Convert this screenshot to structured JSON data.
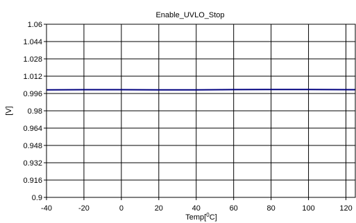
{
  "chart_data": {
    "type": "line",
    "title": "Enable_UVLO_Stop",
    "xlabel": "Temp[",
    "xlabel_sup": "0",
    "xlabel_end": "C]",
    "ylabel": "[V]",
    "xlim": [
      -40,
      125
    ],
    "ylim": [
      0.9,
      1.06
    ],
    "xticks": [
      -40,
      -20,
      0,
      20,
      40,
      60,
      80,
      100,
      120
    ],
    "yticks": [
      0.9,
      0.916,
      0.932,
      0.948,
      0.964,
      0.98,
      0.996,
      1.012,
      1.028,
      1.044,
      1.06
    ],
    "ytick_labels": [
      "0.9",
      "0.916",
      "0.932",
      "0.948",
      "0.964",
      "0.98",
      "0.996",
      "1.012",
      "1.028",
      "1.044",
      "1.06"
    ],
    "xtick_labels": [
      "-40",
      "-20",
      "0",
      "20",
      "40",
      "60",
      "80",
      "100",
      "120"
    ],
    "grid": true,
    "legend": "none",
    "series": [
      {
        "color": "#00007f",
        "x": [
          -40,
          -20,
          0,
          20,
          40,
          60,
          80,
          100,
          125
        ],
        "values": [
          0.9993,
          0.9995,
          0.9995,
          0.9994,
          0.9994,
          0.9996,
          0.9997,
          0.9997,
          0.9995
        ]
      }
    ]
  }
}
